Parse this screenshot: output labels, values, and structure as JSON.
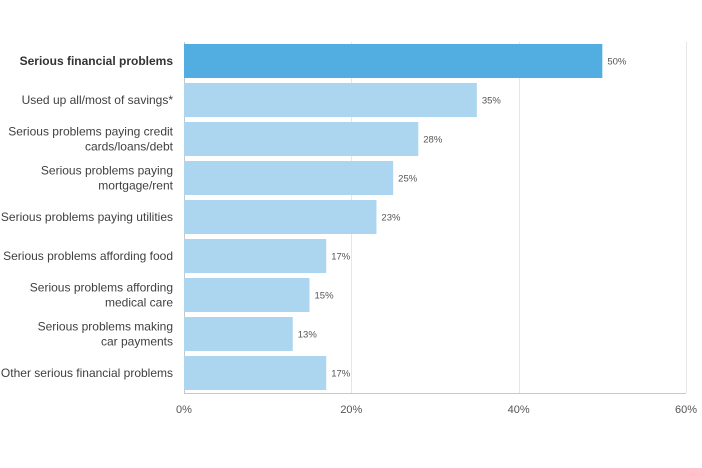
{
  "chart_data": {
    "type": "bar",
    "orientation": "horizontal",
    "categories": [
      [
        "Serious financial problems"
      ],
      [
        "Used up all/most of savings*"
      ],
      [
        "Serious problems paying credit",
        "cards/loans/debt"
      ],
      [
        "Serious problems paying",
        "mortgage/rent"
      ],
      [
        "Serious problems paying utilities"
      ],
      [
        "Serious problems affording food"
      ],
      [
        "Serious problems affording",
        "medical care"
      ],
      [
        "Serious problems making",
        "car payments"
      ],
      [
        "Other serious financial problems"
      ]
    ],
    "values": [
      50,
      35,
      28,
      25,
      23,
      17,
      15,
      13,
      17
    ],
    "value_labels": [
      "50%",
      "35%",
      "28%",
      "25%",
      "23%",
      "17%",
      "15%",
      "13%",
      "17%"
    ],
    "highlight_index": 0,
    "xlim": [
      0,
      60
    ],
    "x_ticks": [
      0,
      20,
      40,
      60
    ],
    "x_tick_labels": [
      "0%",
      "20%",
      "40%",
      "60%"
    ],
    "grid": true,
    "title": "",
    "xlabel": "",
    "ylabel": "",
    "colors": {
      "highlight": "#52aee0",
      "bar": "#acd5f0",
      "grid": "#e6e6e6"
    }
  }
}
